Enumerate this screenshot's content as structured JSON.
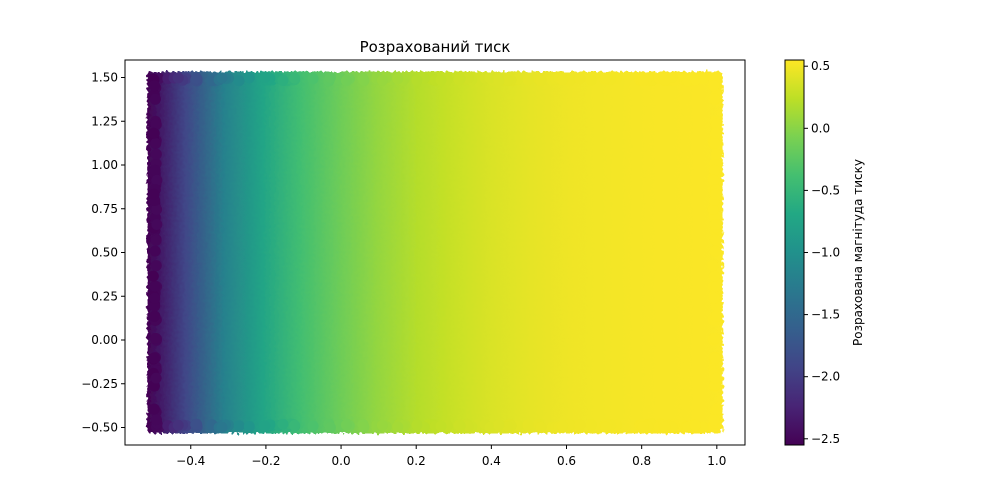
{
  "chart_data": {
    "type": "scatter",
    "title": "Розрахований тиск",
    "xlabel": "",
    "ylabel": "",
    "xlim": [
      -0.575,
      1.075
    ],
    "ylim": [
      -0.6,
      1.6
    ],
    "x_ticks": [
      -0.4,
      -0.2,
      0.0,
      0.2,
      0.4,
      0.6,
      0.8,
      1.0
    ],
    "x_tick_labels": [
      "−0.4",
      "−0.2",
      "0.0",
      "0.2",
      "0.4",
      "0.6",
      "0.8",
      "1.0"
    ],
    "y_ticks": [
      -0.5,
      -0.25,
      0.0,
      0.25,
      0.5,
      0.75,
      1.0,
      1.25,
      1.5
    ],
    "y_tick_labels": [
      "−0.50",
      "−0.25",
      "0.00",
      "0.25",
      "0.50",
      "0.75",
      "1.00",
      "1.25",
      "1.50"
    ],
    "data_domain": {
      "x": [
        -0.5,
        1.0
      ],
      "y": [
        -0.5,
        1.5
      ]
    },
    "color_profile": {
      "description_x": [
        -0.5,
        -0.4,
        -0.3,
        -0.2,
        -0.1,
        0.0,
        0.1,
        0.2,
        0.3,
        0.4,
        0.5,
        0.6,
        0.7,
        0.8,
        0.9,
        1.0
      ],
      "value": [
        -2.55,
        -1.9,
        -1.2,
        -0.75,
        -0.4,
        -0.15,
        0.05,
        0.2,
        0.3,
        0.38,
        0.44,
        0.48,
        0.5,
        0.52,
        0.53,
        0.54
      ]
    },
    "colormap": "viridis",
    "colorbar": {
      "label": "Розрахована магнітуда тиску",
      "range": [
        -2.55,
        0.55
      ],
      "ticks": [
        0.5,
        0.0,
        -0.5,
        -1.0,
        -1.5,
        -2.0,
        -2.5
      ],
      "tick_labels": [
        "0.5",
        "0.0",
        "−0.5",
        "−1.0",
        "−1.5",
        "−2.0",
        "−2.5"
      ]
    },
    "grid": false,
    "legend": "none"
  }
}
